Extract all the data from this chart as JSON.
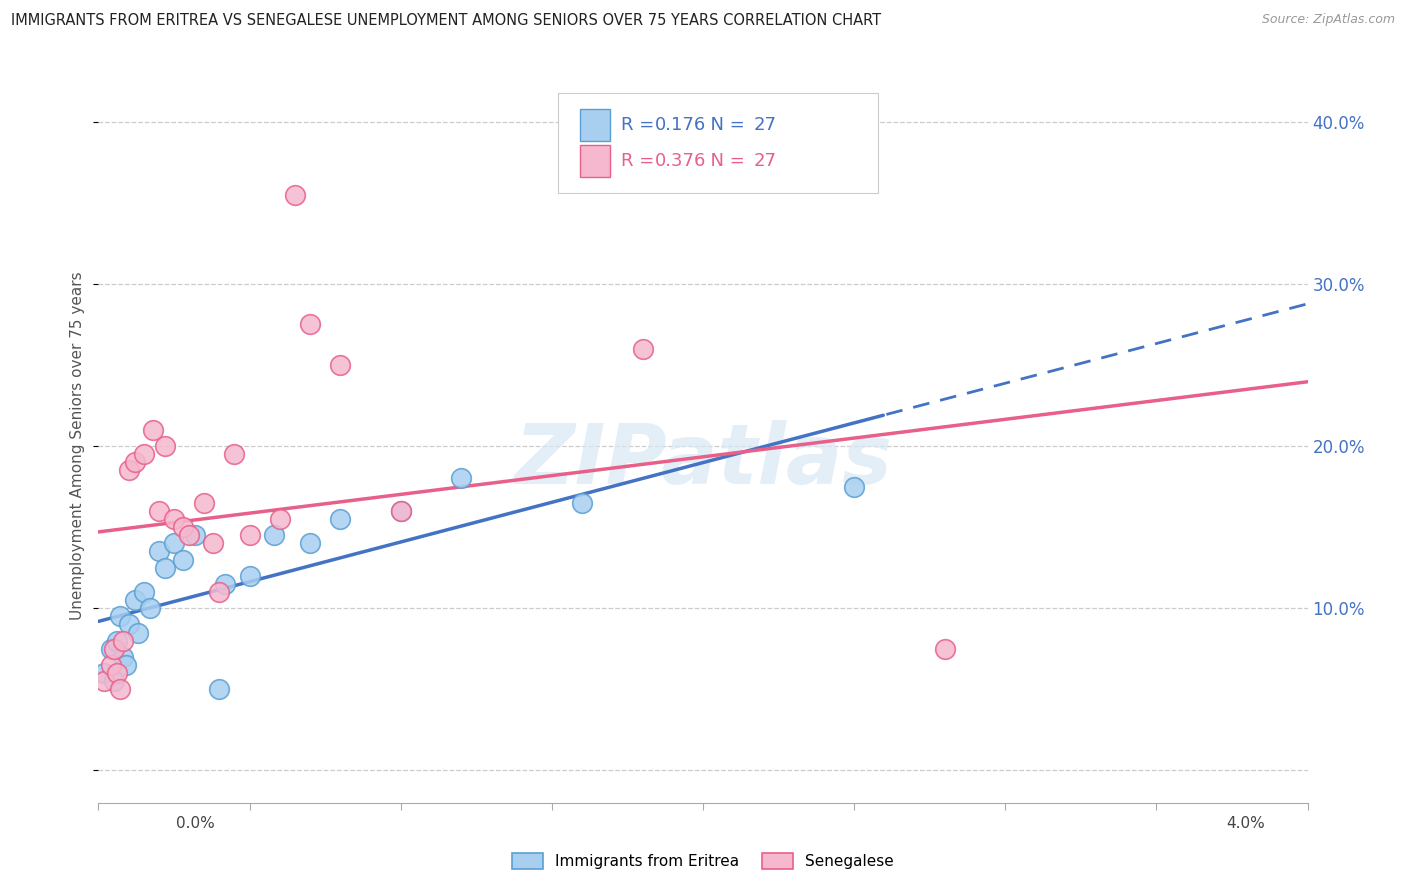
{
  "title": "IMMIGRANTS FROM ERITREA VS SENEGALESE UNEMPLOYMENT AMONG SENIORS OVER 75 YEARS CORRELATION CHART",
  "source": "Source: ZipAtlas.com",
  "ylabel": "Unemployment Among Seniors over 75 years",
  "xlim": [
    0.0,
    4.0
  ],
  "ylim": [
    -2.0,
    42.0
  ],
  "yticks": [
    0.0,
    10.0,
    20.0,
    30.0,
    40.0
  ],
  "ytick_labels_right": [
    "",
    "10.0%",
    "20.0%",
    "30.0%",
    "40.0%"
  ],
  "legend_r_blue": "0.176",
  "legend_r_pink": "0.376",
  "legend_n": "27",
  "blue_face": "#a8cff0",
  "blue_edge": "#5a9fd4",
  "blue_line": "#4472c4",
  "pink_face": "#f5b8ce",
  "pink_edge": "#e8608a",
  "pink_line": "#e8608a",
  "text_color_dark": "#333333",
  "text_color_blue": "#4472c4",
  "text_color_pink": "#e8608a",
  "watermark_text": "ZIPatlas",
  "blue_x": [
    0.02,
    0.04,
    0.05,
    0.06,
    0.07,
    0.08,
    0.09,
    0.1,
    0.12,
    0.13,
    0.15,
    0.17,
    0.2,
    0.22,
    0.25,
    0.28,
    0.32,
    0.4,
    0.42,
    0.5,
    0.58,
    0.7,
    0.8,
    1.0,
    1.2,
    1.6,
    2.5
  ],
  "blue_y": [
    6.0,
    7.5,
    5.5,
    8.0,
    9.5,
    7.0,
    6.5,
    9.0,
    10.5,
    8.5,
    11.0,
    10.0,
    13.5,
    12.5,
    14.0,
    13.0,
    14.5,
    5.0,
    11.5,
    12.0,
    14.5,
    14.0,
    15.5,
    16.0,
    18.0,
    16.5,
    17.5
  ],
  "pink_x": [
    0.02,
    0.04,
    0.05,
    0.06,
    0.07,
    0.08,
    0.1,
    0.12,
    0.15,
    0.18,
    0.2,
    0.22,
    0.25,
    0.28,
    0.3,
    0.35,
    0.38,
    0.4,
    0.45,
    0.5,
    0.6,
    0.65,
    0.7,
    0.8,
    1.0,
    1.8,
    2.8
  ],
  "pink_y": [
    5.5,
    6.5,
    7.5,
    6.0,
    5.0,
    8.0,
    18.5,
    19.0,
    19.5,
    21.0,
    16.0,
    20.0,
    15.5,
    15.0,
    14.5,
    16.5,
    14.0,
    11.0,
    19.5,
    14.5,
    15.5,
    35.5,
    27.5,
    25.0,
    16.0,
    26.0,
    7.5
  ]
}
